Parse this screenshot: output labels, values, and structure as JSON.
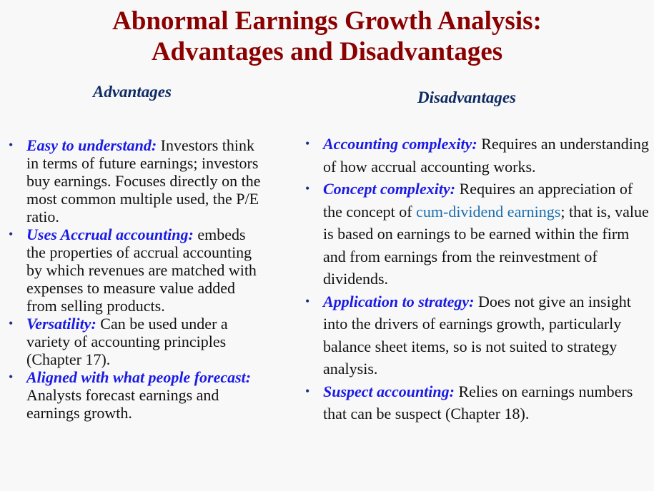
{
  "slide": {
    "title_line1": "Abnormal Earnings Growth Analysis:",
    "title_line2": "Advantages and Disadvantages"
  },
  "advantages": {
    "heading": "Advantages",
    "items": [
      {
        "term": "Easy to understand:",
        "text": " Investors think in terms of future earnings; investors buy earnings. Focuses directly on the most common multiple used, the P/E ratio."
      },
      {
        "term": "Uses Accrual accounting:",
        "text": " embeds the properties of accrual accounting by which revenues are matched with expenses to measure value added from selling products."
      },
      {
        "term": "Versatility:",
        "text": " Can be used under a variety of accounting principles (Chapter 17)."
      },
      {
        "term": "Aligned with what people forecast:",
        "text": " Analysts forecast earnings and earnings growth."
      }
    ]
  },
  "disadvantages": {
    "heading": "Disadvantages",
    "items": [
      {
        "term": "Accounting complexity:",
        "text": " Requires an understanding of how accrual accounting works."
      },
      {
        "term": "Concept complexity:",
        "text_before": " Requires an appreciation of the concept of ",
        "link": "cum-dividend earnings",
        "text_after": "; that is, value is based on earnings to be earned within the firm and from earnings from the reinvestment of dividends."
      },
      {
        "term": "Application to strategy:",
        "text": " Does not give an insight into the drivers of earnings growth, particularly balance sheet items, so is not suited to strategy analysis."
      },
      {
        "term": "Suspect accounting:",
        "text": " Relies on earnings numbers that can be suspect (Chapter 18)."
      }
    ]
  },
  "bullet_symbol": "•",
  "colors": {
    "title": "#8b0000",
    "heading": "#0d2a63",
    "term": "#1a1ae6",
    "link": "#1a6fb0"
  }
}
